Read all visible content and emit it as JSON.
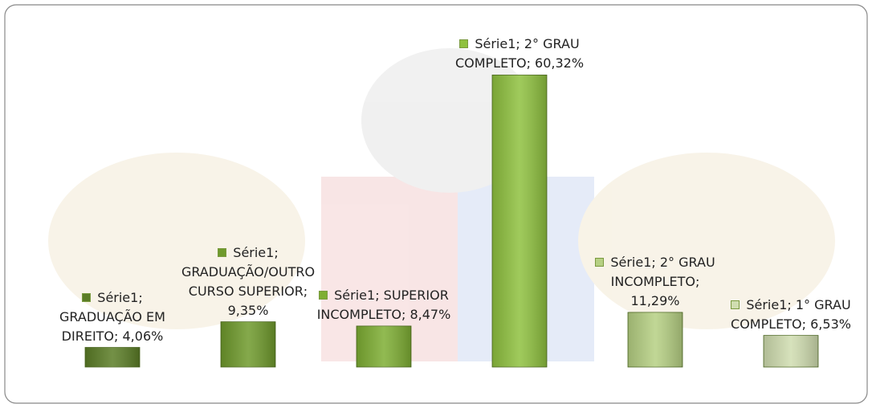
{
  "chart_data": {
    "type": "bar",
    "values": [
      4.06,
      9.35,
      8.47,
      60.32,
      11.29,
      6.53
    ],
    "value_labels": [
      "Série1; GRADUAÇÃO EM DIREITO; 4,06%",
      "Série1; GRADUAÇÃO/OUTRO CURSO SUPERIOR; 9,35%",
      "Série1; SUPERIOR INCOMPLETO; 8,47%",
      "Série1; 2° GRAU COMPLETO; 60,32%",
      "Série1; 2° GRAU INCOMPLETO; 11,29%",
      "Série1; 1° GRAU COMPLETO; 6,53%"
    ],
    "colors": [
      "#5b7d26",
      "#6f9a2c",
      "#7eae33",
      "#8fc13f",
      "#b6d083",
      "#d0ddb0"
    ],
    "ylim": [
      0,
      70
    ]
  }
}
